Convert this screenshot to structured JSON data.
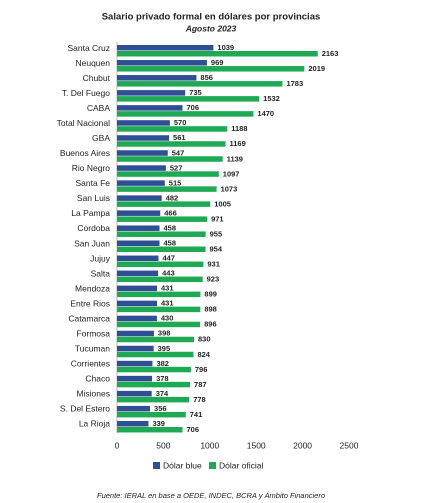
{
  "chart_data": {
    "type": "bar",
    "orientation": "horizontal",
    "title": "Salario privado formal en dólares por provincias",
    "subtitle": "Agosto 2023",
    "source": "Fuente: IERAL en base a OEDE, INDEC, BCRA y Ámbito Financiero",
    "categories": [
      "Santa Cruz",
      "Neuquen",
      "Chubut",
      "T. Del Fuego",
      "CABA",
      "Total Nacional",
      "GBA",
      "Buenos Aires",
      "Rio Negro",
      "Santa Fe",
      "San Luis",
      "La Pampa",
      "Cordoba",
      "San Juan",
      "Jujuy",
      "Salta",
      "Mendoza",
      "Entre Rios",
      "Catamarca",
      "Formosa",
      "Tucuman",
      "Corrientes",
      "Chaco",
      "Misiones",
      "S. Del Estero",
      "La Rioja"
    ],
    "series": [
      {
        "name": "Dólar blue",
        "color": "#2f4f95",
        "values": [
          1039,
          969,
          856,
          735,
          706,
          570,
          561,
          547,
          527,
          515,
          482,
          466,
          458,
          458,
          447,
          443,
          431,
          431,
          430,
          398,
          395,
          382,
          378,
          374,
          356,
          339
        ]
      },
      {
        "name": "Dólar oficial",
        "color": "#1fa955",
        "values": [
          2163,
          2019,
          1783,
          1532,
          1470,
          1188,
          1169,
          1139,
          1097,
          1073,
          1005,
          971,
          955,
          954,
          931,
          923,
          899,
          898,
          896,
          830,
          824,
          796,
          787,
          778,
          741,
          706
        ]
      }
    ],
    "xlim": [
      0,
      2500
    ],
    "xticks": [
      0,
      500,
      1000,
      1500,
      2000,
      2500
    ],
    "grid": false
  }
}
